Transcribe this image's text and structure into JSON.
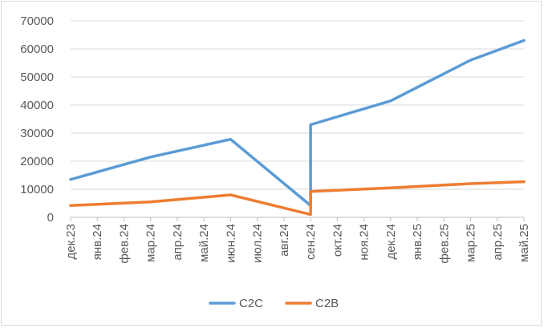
{
  "chart_data": {
    "type": "line",
    "title": "",
    "xlabel": "",
    "ylabel": "",
    "categories": [
      "дек.23",
      "янв.24",
      "фев.24",
      "мар.24",
      "апр.24",
      "май.24",
      "июн.24",
      "июл.24",
      "авг.24",
      "сен.24",
      "окт.24",
      "ноя.24",
      "дек.24",
      "янв.25",
      "фев.25",
      "мар.25",
      "апр.25",
      "май.25"
    ],
    "ylim": [
      0,
      70000
    ],
    "yticks": [
      0,
      10000,
      20000,
      30000,
      40000,
      50000,
      60000,
      70000
    ],
    "ytick_labels": [
      "0",
      "10000",
      "20000",
      "30000",
      "40000",
      "50000",
      "60000",
      "70000"
    ],
    "grid": true,
    "legend_position": "bottom",
    "series": [
      {
        "name": "C2C",
        "color": "#5b9bd5",
        "points": [
          {
            "x": "дек.23",
            "y": 13500
          },
          {
            "x": "мар.24",
            "y": 21500
          },
          {
            "x": "июн.24",
            "y": 27800
          },
          {
            "x": "сен.24",
            "y": 4200
          },
          {
            "x": "сен.24",
            "y": 33000
          },
          {
            "x": "дек.24",
            "y": 41500
          },
          {
            "x": "мар.25",
            "y": 56000
          },
          {
            "x": "май.25",
            "y": 63000
          }
        ]
      },
      {
        "name": "C2B",
        "color": "#ed7d31",
        "points": [
          {
            "x": "дек.23",
            "y": 4200
          },
          {
            "x": "мар.24",
            "y": 5500
          },
          {
            "x": "июн.24",
            "y": 8000
          },
          {
            "x": "сен.24",
            "y": 1000
          },
          {
            "x": "сен.24",
            "y": 9200
          },
          {
            "x": "дек.24",
            "y": 10500
          },
          {
            "x": "мар.25",
            "y": 12000
          },
          {
            "x": "май.25",
            "y": 12700
          }
        ]
      }
    ]
  }
}
